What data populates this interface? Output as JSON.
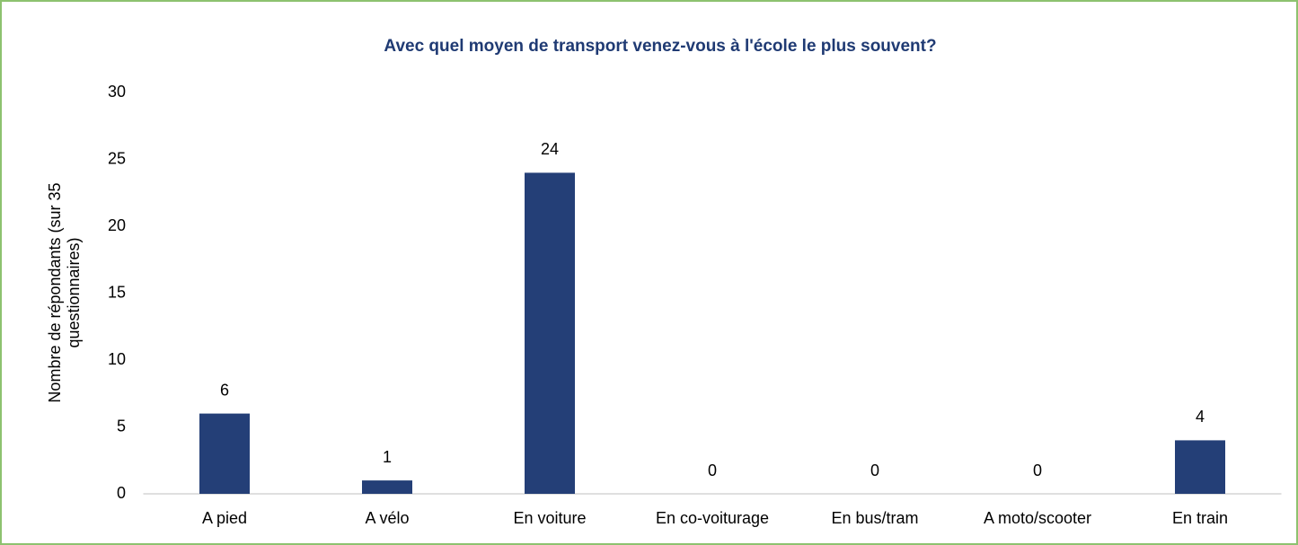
{
  "chart_data": {
    "type": "bar",
    "title": "Avec quel moyen de transport venez-vous à l'école le plus souvent?",
    "ylabel": [
      "Nombre de répondants (sur 35",
      "questionnaires)"
    ],
    "categories": [
      "A pied",
      "A vélo",
      "En voiture",
      "En co-voiturage",
      "En bus/tram",
      "A moto/scooter",
      "En train"
    ],
    "values": [
      6,
      1,
      24,
      0,
      0,
      0,
      4
    ],
    "color": "#243f77",
    "ylim": [
      0,
      30
    ],
    "yticks": [
      0,
      5,
      10,
      15,
      20,
      25,
      30
    ],
    "grid": false
  }
}
